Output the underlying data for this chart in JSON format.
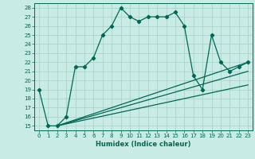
{
  "xlabel": "Humidex (Indice chaleur)",
  "background_color": "#c8ece4",
  "grid_color": "#a8d4cc",
  "line_color": "#006655",
  "xlim": [
    -0.5,
    23.5
  ],
  "ylim": [
    14.5,
    28.5
  ],
  "xticks": [
    0,
    1,
    2,
    3,
    4,
    5,
    6,
    7,
    8,
    9,
    10,
    11,
    12,
    13,
    14,
    15,
    16,
    17,
    18,
    19,
    20,
    21,
    22,
    23
  ],
  "yticks": [
    15,
    16,
    17,
    18,
    19,
    20,
    21,
    22,
    23,
    24,
    25,
    26,
    27,
    28
  ],
  "line1_x": [
    0,
    1,
    2,
    3,
    4,
    5,
    6,
    7,
    8,
    9,
    10,
    11,
    12,
    13,
    14,
    15,
    16,
    17,
    18,
    19,
    20,
    21,
    22,
    23
  ],
  "line1_y": [
    19,
    15,
    15,
    16,
    21.5,
    21.5,
    22.5,
    25,
    26,
    28,
    27,
    26.5,
    27,
    27,
    27,
    27.5,
    26,
    20.5,
    19,
    25,
    22,
    21,
    21.5,
    22
  ],
  "line2_x": [
    2,
    23
  ],
  "line2_y": [
    15,
    22
  ],
  "line3_x": [
    2,
    23
  ],
  "line3_y": [
    15,
    21
  ],
  "line4_x": [
    2,
    23
  ],
  "line4_y": [
    15,
    19.5
  ]
}
